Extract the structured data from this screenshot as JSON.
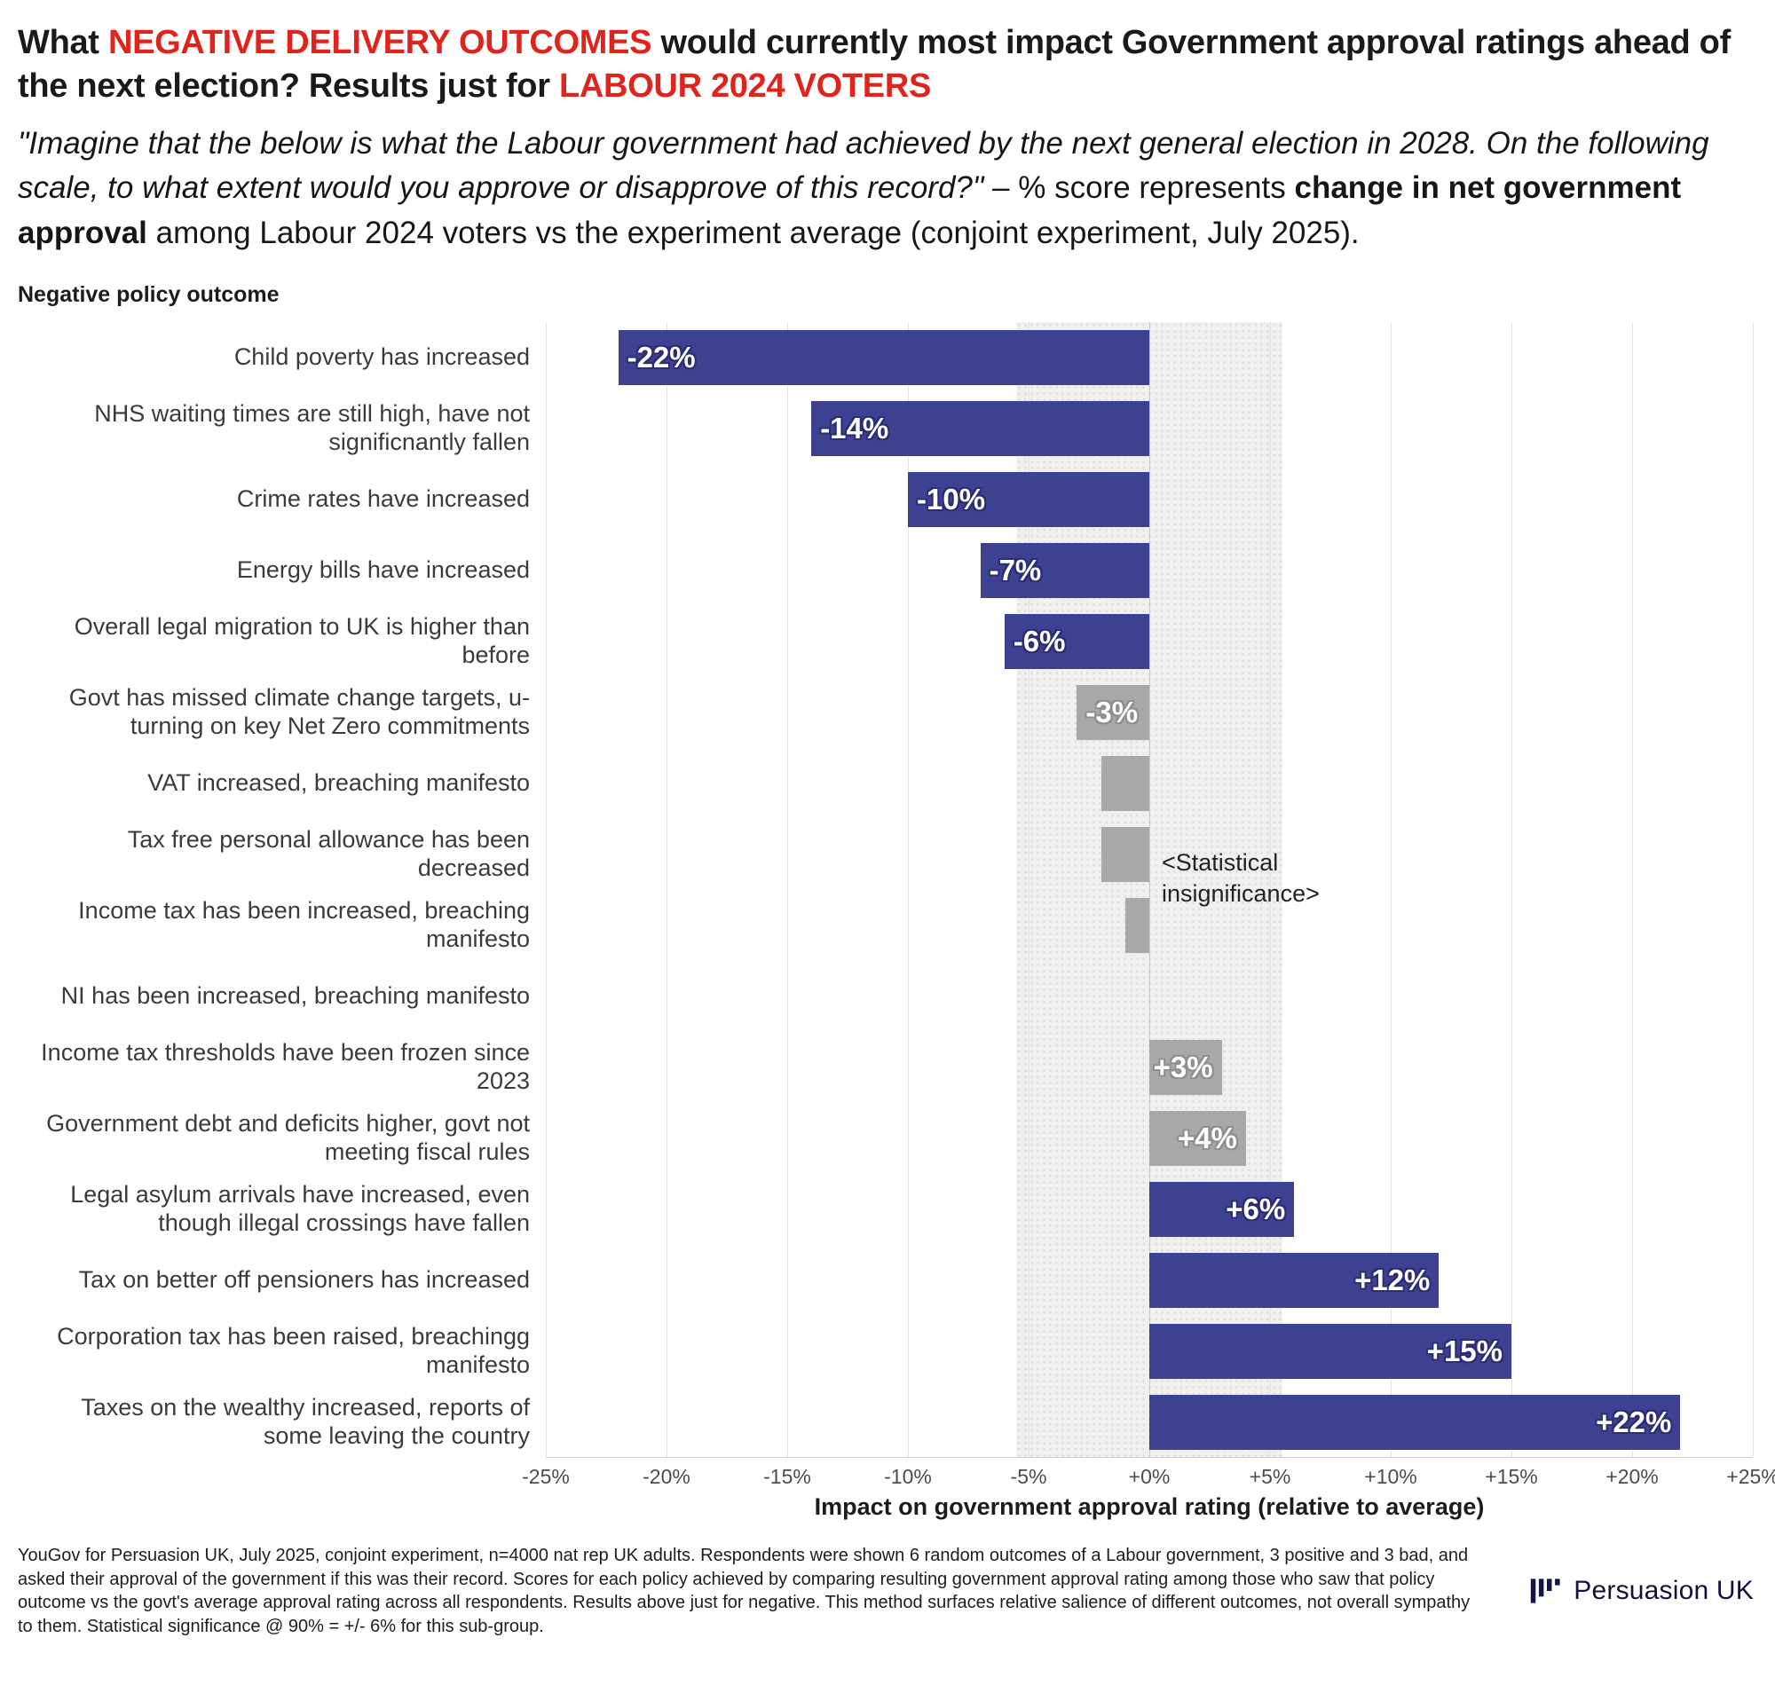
{
  "colors": {
    "accent_red": "#e0241c",
    "bar_significant": "#3e4192",
    "bar_insignificant": "#a8a8a8",
    "band_fill": "#f0f0f0",
    "logo_navy": "#15154a"
  },
  "header": {
    "title_segments": [
      {
        "text": "What ",
        "red": false
      },
      {
        "text": "NEGATIVE DELIVERY OUTCOMES",
        "red": true
      },
      {
        "text": " would currently most impact Government approval ratings ahead of the next election? Results just for ",
        "red": false
      },
      {
        "text": "LABOUR 2024 VOTERS",
        "red": true
      }
    ],
    "subtitle_segments": [
      {
        "text": "\"Imagine that the below is what the Labour government had achieved by the next general election in 2028. On the following scale, to what extent would you approve or disapprove of this record?\" – ",
        "style": "italic"
      },
      {
        "text": "% score represents ",
        "style": "regular"
      },
      {
        "text": "change in net government approval",
        "style": "bold"
      },
      {
        "text": " among Labour 2024 voters vs the experiment average (conjoint experiment, July 2025).",
        "style": "regular"
      }
    ]
  },
  "chart": {
    "row_caption": "Negative policy outcome",
    "x_axis_label": "Impact on government approval rating (relative to average)",
    "annotation": "<Statistical insignificance>",
    "chart_data": {
      "type": "bar",
      "orientation": "horizontal",
      "xlabel": "Impact on government approval rating (relative to average)",
      "ylabel": "Negative policy outcome",
      "xlim": [
        -25,
        25
      ],
      "ticks": [
        -25,
        -20,
        -15,
        -10,
        -5,
        0,
        5,
        10,
        15,
        20,
        25
      ],
      "tick_labels": [
        "-25%",
        "-20%",
        "-15%",
        "-10%",
        "-5%",
        "+0%",
        "+5%",
        "+10%",
        "+15%",
        "+20%",
        "+25%"
      ],
      "band": {
        "from": -5.5,
        "to": 5.5
      },
      "categories": [
        "Child poverty has increased",
        "NHS waiting times are still high, have not significnantly fallen",
        "Crime rates have increased",
        "Energy bills have increased",
        "Overall legal migration to UK is higher than before",
        "Govt has missed climate change targets, u-turning on key Net Zero commitments",
        "VAT increased, breaching manifesto",
        "Tax free personal allowance has been decreased",
        "Income tax has been increased, breaching manifesto",
        "NI has been increased, breaching manifesto",
        "Income tax thresholds have been frozen since 2023",
        "Government debt and deficits higher, govt not meeting fiscal rules",
        "Legal asylum arrivals have increased, even though illegal crossings have fallen",
        "Tax on better off pensioners has increased",
        "Corporation tax has been raised, breachingg manifesto",
        "Taxes on the wealthy increased, reports of some leaving the country"
      ],
      "values": [
        -22,
        -14,
        -10,
        -7,
        -6,
        -3,
        -2,
        -2,
        -1,
        0,
        3,
        4,
        6,
        12,
        15,
        22
      ],
      "data_labels": [
        "-22%",
        "-14%",
        "-10%",
        "-7%",
        "-6%",
        "-3%",
        "",
        "",
        "",
        "",
        "+3%",
        "+4%",
        "+6%",
        "+12%",
        "+15%",
        "+22%"
      ],
      "significant": [
        true,
        true,
        true,
        true,
        true,
        false,
        false,
        false,
        false,
        false,
        false,
        false,
        true,
        true,
        true,
        true
      ]
    }
  },
  "footer": {
    "note": "YouGov for Persuasion UK, July 2025, conjoint experiment, n=4000 nat rep UK adults. Respondents were shown 6 random outcomes of a Labour government, 3 positive and 3 bad, and asked their approval of the government if this was their record. Scores for each policy achieved by comparing resulting government approval rating among those who saw that policy outcome vs the govt's average approval rating across all respondents. Results above just for negative. This method surfaces relative salience of different outcomes, not overall sympathy to them. Statistical significance @ 90% = +/- 6% for this sub-group.",
    "logo_text": "Persuasion UK"
  }
}
